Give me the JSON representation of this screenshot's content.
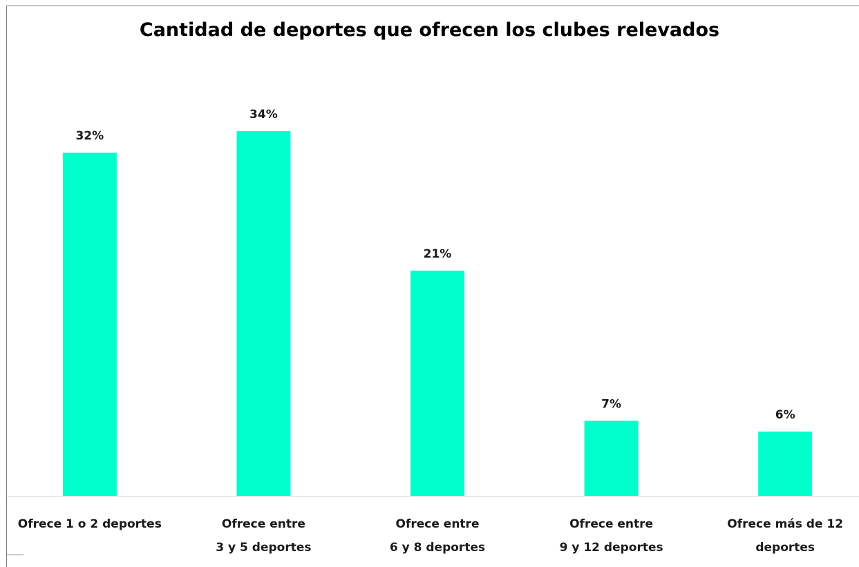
{
  "chart_data": {
    "type": "bar",
    "title": "Cantidad de deportes que ofrecen los clubes relevados",
    "categories": [
      [
        "Ofrece 1 o 2 deportes"
      ],
      [
        "Ofrece entre",
        "3 y 5 deportes"
      ],
      [
        "Ofrece entre",
        "6 y 8 deportes"
      ],
      [
        "Ofrece entre",
        "9 y 12 deportes"
      ],
      [
        "Ofrece más de 12",
        "deportes"
      ]
    ],
    "values": [
      32,
      34,
      21,
      7,
      6
    ],
    "data_labels": [
      "32%",
      "34%",
      "21%",
      "7%",
      "6%"
    ],
    "unit": "%",
    "ylim": [
      0,
      40
    ],
    "grid": false,
    "legend": "none",
    "bar_color": "#00ffcc",
    "axis_color": "#d9d9d9"
  }
}
